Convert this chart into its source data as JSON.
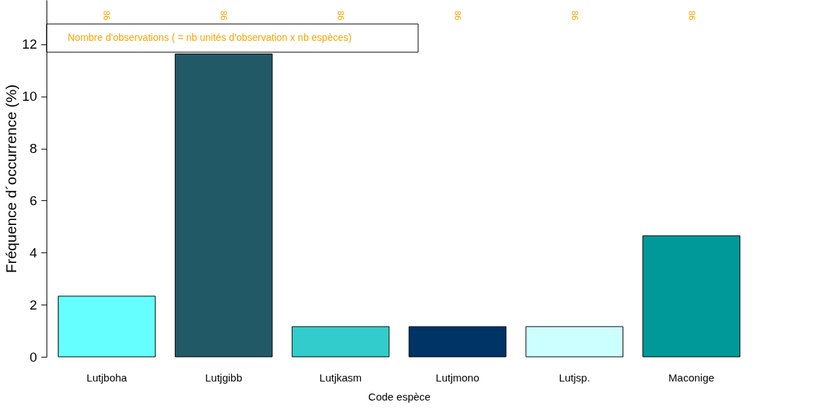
{
  "chart_data": {
    "type": "bar",
    "xlabel": "Code espèce",
    "ylabel": "Fréquence d´occurrence (%)",
    "categories": [
      "Lutjboha",
      "Lutjgibb",
      "Lutjkasm",
      "Lutjmono",
      "Lutjsp.",
      "Maconige"
    ],
    "values": [
      2.33,
      11.63,
      1.16,
      1.16,
      1.16,
      4.65
    ],
    "colors": [
      "#66ffff",
      "#225966",
      "#33cccc",
      "#003366",
      "#ccffff",
      "#009999"
    ],
    "ylim": [
      0,
      13.7
    ],
    "yticks": [
      0,
      2,
      4,
      6,
      8,
      10,
      12
    ],
    "grid": false,
    "annotations": [
      {
        "text": "Nombre d'observations ( = nb unités d'observation x nb espèces)"
      },
      "86",
      "86",
      "86",
      "86",
      "86",
      "86"
    ]
  }
}
